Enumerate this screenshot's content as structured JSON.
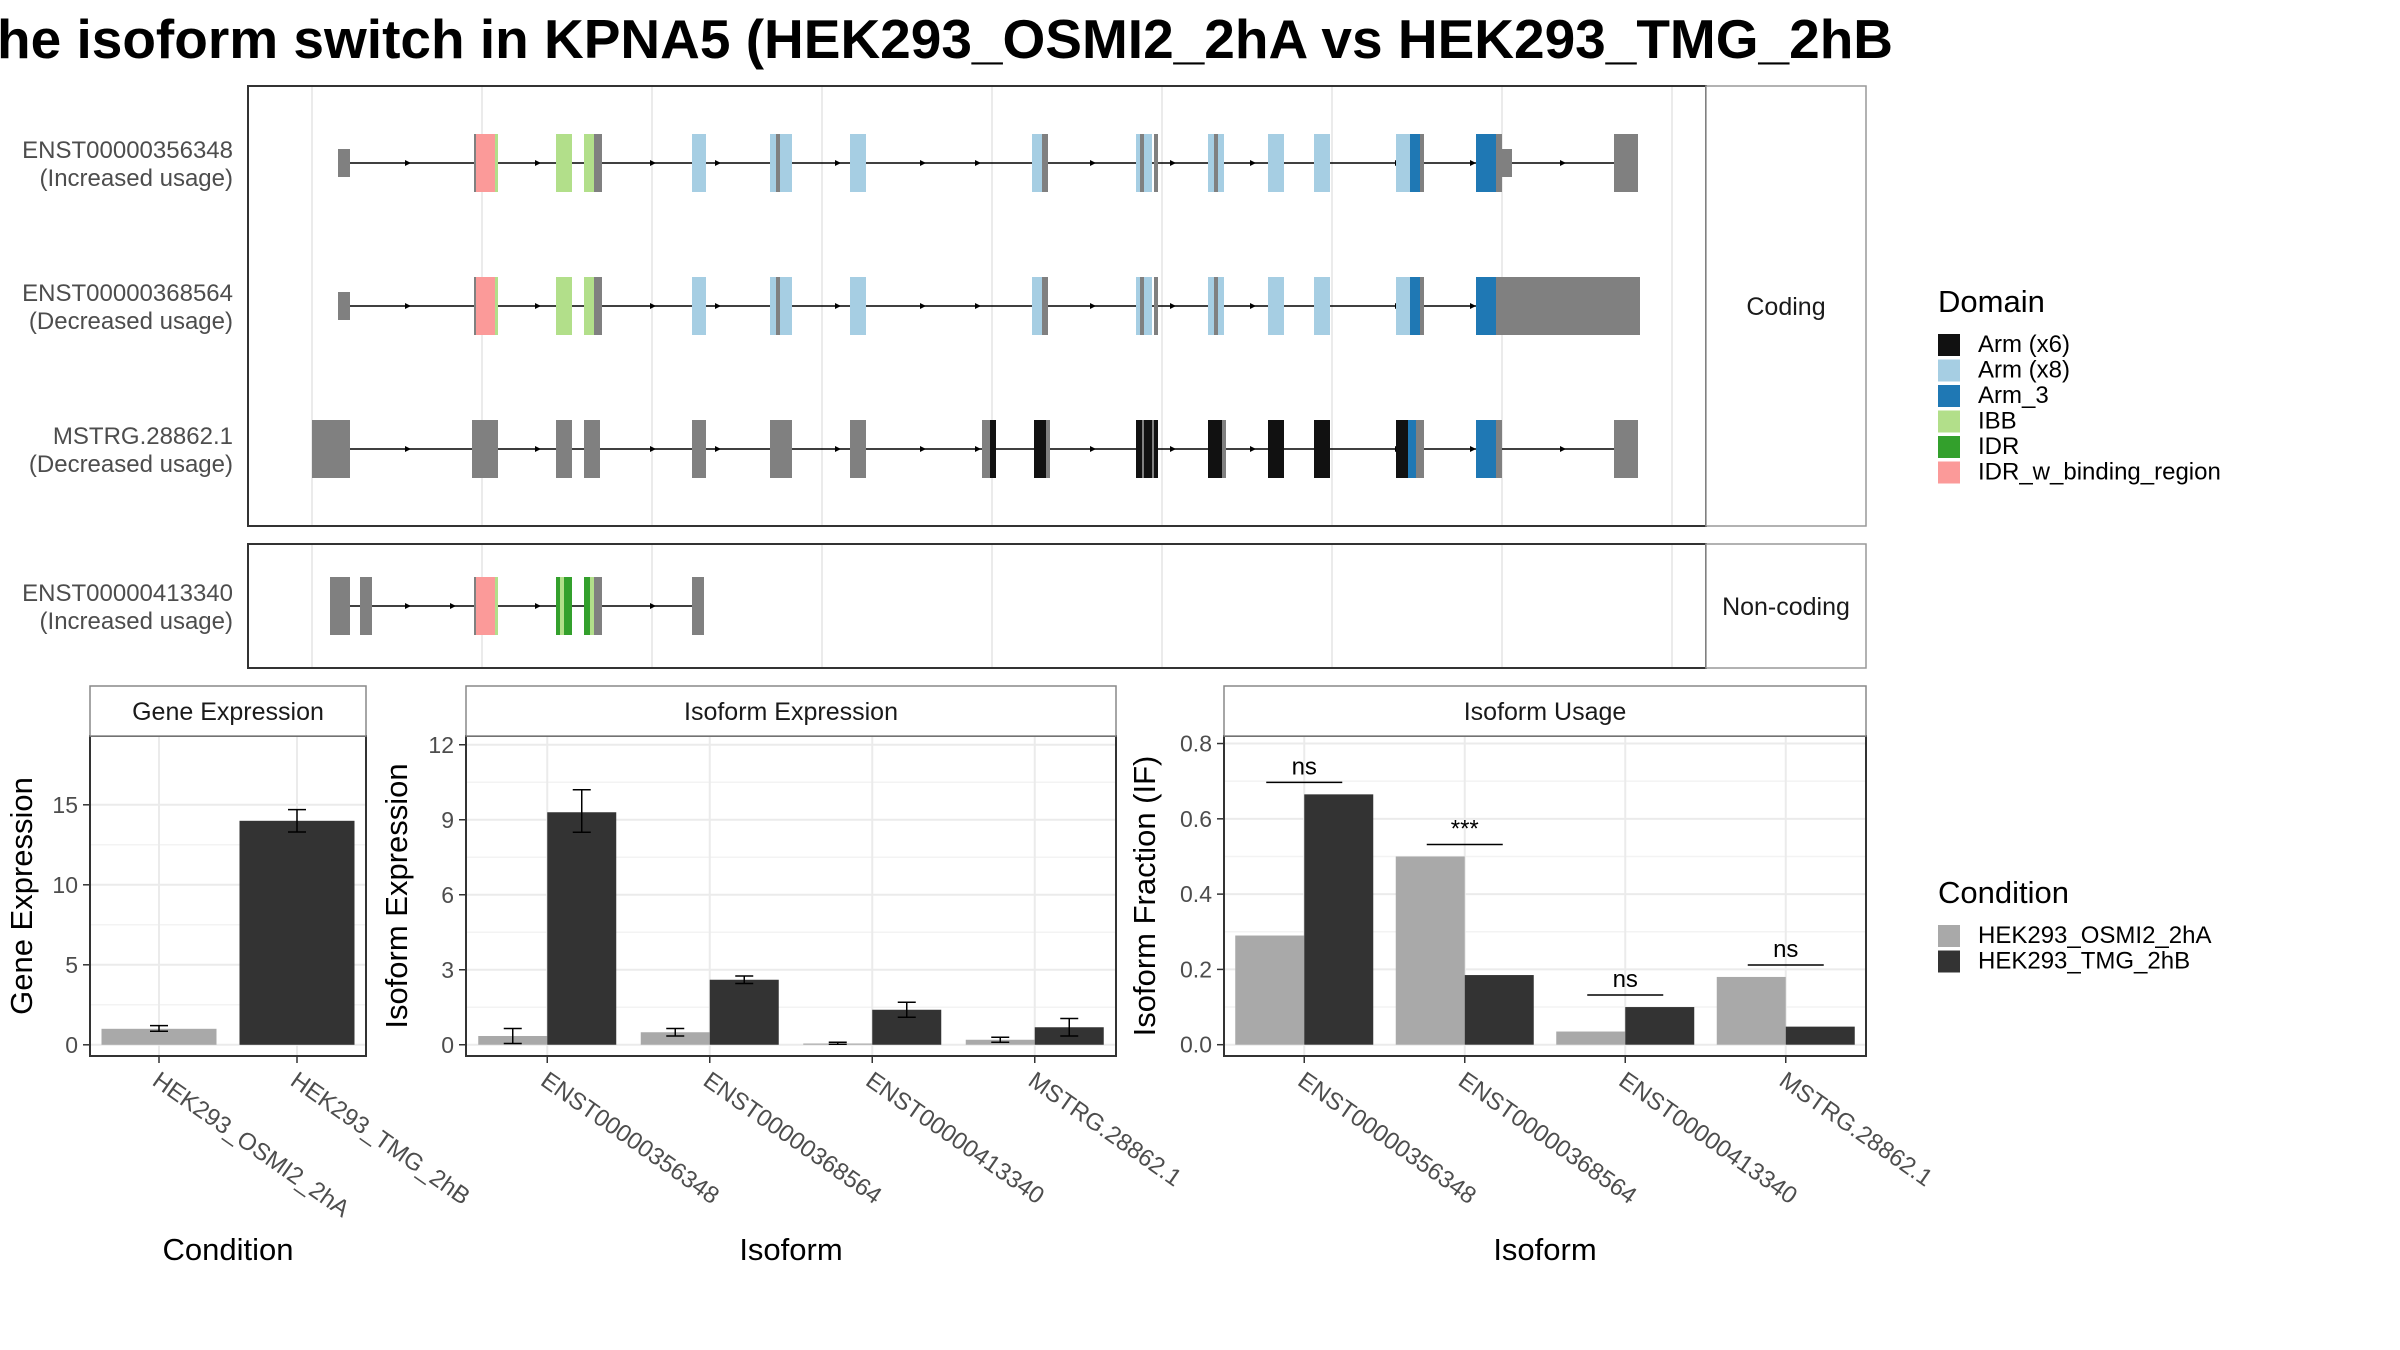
{
  "title": "he isoform switch in KPNA5 (HEK293_OSMI2_2hA vs HEK293_TMG_2hB",
  "colors": {
    "exon": "#808080",
    "cond1": "#a9a9a9",
    "cond2": "#333333",
    "panel_border": "#333333",
    "grid": "#ebebeb",
    "strip_fill": "#ffffff"
  },
  "domains": {
    "title": "Domain",
    "items": [
      {
        "label": "Arm (x6)",
        "color": "#111111"
      },
      {
        "label": "Arm (x8)",
        "color": "#a6cee3"
      },
      {
        "label": "Arm_3",
        "color": "#1f78b4"
      },
      {
        "label": "IBB",
        "color": "#b2df8a"
      },
      {
        "label": "IDR",
        "color": "#33a02c"
      },
      {
        "label": "IDR_w_binding_region",
        "color": "#fb9a99"
      }
    ]
  },
  "condition_legend": {
    "title": "Condition",
    "items": [
      {
        "label": "HEK293_OSMI2_2hA",
        "color": "#a9a9a9"
      },
      {
        "label": "HEK293_TMG_2hB",
        "color": "#333333"
      }
    ]
  },
  "structure": {
    "coding_strip": "Coding",
    "noncoding_strip": "Non-coding",
    "tracks": [
      {
        "name": "ENST00000356348",
        "usage": "(Increased usage)",
        "group": "coding"
      },
      {
        "name": "ENST00000368564",
        "usage": "(Decreased usage)",
        "group": "coding"
      },
      {
        "name": "MSTRG.28862.1",
        "usage": "(Decreased usage)",
        "group": "coding"
      },
      {
        "name": "ENST00000413340",
        "usage": "(Increased usage)",
        "group": "noncoding"
      }
    ]
  },
  "chart_data": [
    {
      "type": "bar",
      "title": "Gene Expression",
      "xlabel": "Condition",
      "ylabel": "Gene Expression",
      "categories": [
        "HEK293_OSMI2_2hA",
        "HEK293_TMG_2hB"
      ],
      "ylim": [
        -0.7,
        19.3
      ],
      "yticks": [
        0,
        5,
        10,
        15
      ],
      "values": [
        1.0,
        14.0
      ],
      "errors": [
        [
          0.85,
          1.2
        ],
        [
          13.3,
          14.7
        ]
      ]
    },
    {
      "type": "bar",
      "title": "Isoform Expression",
      "xlabel": "Isoform",
      "ylabel": "Isoform Expression",
      "categories": [
        "ENST00000356348",
        "ENST00000368564",
        "ENST00000413340",
        "MSTRG.28862.1"
      ],
      "ylim": [
        -0.45,
        12.35
      ],
      "yticks": [
        0,
        3,
        6,
        9,
        12
      ],
      "series": [
        {
          "name": "HEK293_OSMI2_2hA",
          "values": [
            0.35,
            0.5,
            0.05,
            0.2
          ],
          "errors": [
            [
              0.05,
              0.65
            ],
            [
              0.35,
              0.65
            ],
            [
              0.02,
              0.1
            ],
            [
              0.1,
              0.3
            ]
          ]
        },
        {
          "name": "HEK293_TMG_2hB",
          "values": [
            9.3,
            2.6,
            1.4,
            0.7
          ],
          "errors": [
            [
              8.5,
              10.2
            ],
            [
              2.45,
              2.75
            ],
            [
              1.1,
              1.7
            ],
            [
              0.35,
              1.05
            ]
          ]
        }
      ]
    },
    {
      "type": "bar",
      "title": "Isoform Usage",
      "xlabel": "Isoform",
      "ylabel": "Isoform Fraction (IF)",
      "categories": [
        "ENST00000356348",
        "ENST00000368564",
        "ENST00000413340",
        "MSTRG.28862.1"
      ],
      "ylim": [
        -0.03,
        0.82
      ],
      "yticks": [
        0.0,
        0.2,
        0.4,
        0.6,
        0.8
      ],
      "ytick_labels": [
        "0.0",
        "0.2",
        "0.4",
        "0.6",
        "0.8"
      ],
      "series": [
        {
          "name": "HEK293_OSMI2_2hA",
          "values": [
            0.29,
            0.5,
            0.035,
            0.18
          ]
        },
        {
          "name": "HEK293_TMG_2hB",
          "values": [
            0.665,
            0.185,
            0.1,
            0.048
          ]
        }
      ],
      "annotations": [
        "ns",
        "***",
        "ns",
        "ns"
      ]
    }
  ]
}
